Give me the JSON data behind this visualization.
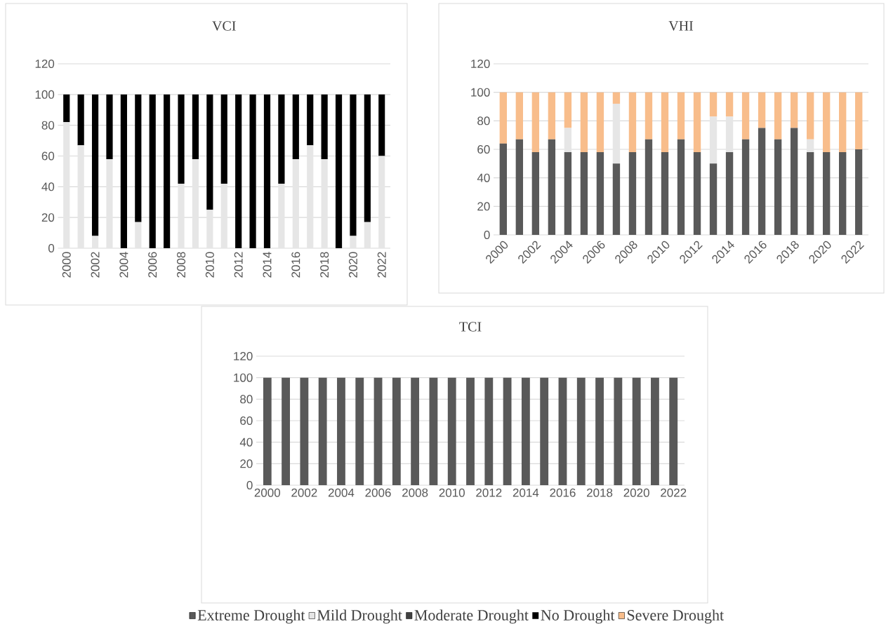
{
  "chart_data": [
    {
      "type": "bar",
      "title": "VCI",
      "stacked": true,
      "grid": "y",
      "ylim": [
        0,
        120
      ],
      "yticks": [
        0,
        20,
        40,
        60,
        80,
        100,
        120
      ],
      "categories": [
        "2000",
        null,
        "2002",
        null,
        "2004",
        null,
        "2006",
        null,
        "2008",
        null,
        "2010",
        null,
        "2012",
        null,
        "2014",
        null,
        "2016",
        null,
        "2018",
        null,
        "2020",
        null,
        "2022"
      ],
      "series": [
        {
          "color": "#e6e6e6",
          "values": [
            82,
            67,
            8,
            58,
            0,
            17,
            0,
            0,
            42,
            58,
            25,
            42,
            0,
            0,
            0,
            42,
            58,
            67,
            58,
            0,
            8,
            17,
            60
          ]
        },
        {
          "color": "#000000",
          "values": [
            18,
            33,
            92,
            42,
            100,
            83,
            100,
            100,
            58,
            42,
            75,
            58,
            100,
            100,
            100,
            58,
            42,
            33,
            42,
            100,
            92,
            83,
            40
          ]
        }
      ]
    },
    {
      "type": "bar",
      "title": "VHI",
      "stacked": true,
      "grid": "y",
      "ylim": [
        0,
        120
      ],
      "yticks": [
        0,
        20,
        40,
        60,
        80,
        100,
        120
      ],
      "categories": [
        "2000",
        null,
        "2002",
        null,
        "2004",
        null,
        "2006",
        null,
        "2008",
        null,
        "2010",
        null,
        "2012",
        null,
        "2014",
        null,
        "2016",
        null,
        "2018",
        null,
        "2020",
        null,
        "2022"
      ],
      "series": [
        {
          "color": "#595959",
          "values": [
            64,
            67,
            58,
            67,
            58,
            58,
            58,
            50,
            58,
            67,
            58,
            67,
            58,
            50,
            58,
            67,
            75,
            67,
            75,
            58,
            58,
            58,
            60
          ]
        },
        {
          "color": "#e6e6e6",
          "values": [
            0,
            0,
            0,
            0,
            17,
            0,
            0,
            42,
            0,
            0,
            0,
            0,
            0,
            33,
            25,
            0,
            0,
            0,
            0,
            9,
            0,
            0,
            0
          ]
        },
        {
          "color": "#f8bd8b",
          "values": [
            36,
            33,
            42,
            33,
            25,
            42,
            42,
            8,
            42,
            33,
            42,
            33,
            42,
            17,
            17,
            33,
            25,
            33,
            25,
            33,
            42,
            42,
            40
          ]
        }
      ]
    },
    {
      "type": "bar",
      "title": "TCI",
      "stacked": true,
      "grid": "y",
      "legend": "bottom",
      "ylim": [
        0,
        120
      ],
      "yticks": [
        0,
        20,
        40,
        60,
        80,
        100,
        120
      ],
      "categories": [
        "2000",
        null,
        "2002",
        null,
        "2004",
        null,
        "2006",
        null,
        "2008",
        null,
        "2010",
        null,
        "2012",
        null,
        "2014",
        null,
        "2016",
        null,
        "2018",
        null,
        "2020",
        null,
        "2022"
      ],
      "series": [
        {
          "name": "Extreme Drought",
          "color": "#595959",
          "values": [
            100,
            100,
            100,
            100,
            100,
            100,
            100,
            100,
            100,
            100,
            100,
            100,
            100,
            100,
            100,
            100,
            100,
            100,
            100,
            100,
            100,
            100,
            100
          ]
        },
        {
          "name": "Mild Drought",
          "color": "#e6e6e6",
          "values": [
            0,
            0,
            0,
            0,
            0,
            0,
            0,
            0,
            0,
            0,
            0,
            0,
            0,
            0,
            0,
            0,
            0,
            0,
            0,
            0,
            0,
            0,
            0
          ]
        },
        {
          "name": "Moderate Drought",
          "color": "#404040",
          "values": [
            0,
            0,
            0,
            0,
            0,
            0,
            0,
            0,
            0,
            0,
            0,
            0,
            0,
            0,
            0,
            0,
            0,
            0,
            0,
            0,
            0,
            0,
            0
          ]
        },
        {
          "name": "No Drought",
          "color": "#000000",
          "values": [
            0,
            0,
            0,
            0,
            0,
            0,
            0,
            0,
            0,
            0,
            0,
            0,
            0,
            0,
            0,
            0,
            0,
            0,
            0,
            0,
            0,
            0,
            0
          ]
        },
        {
          "name": "Severe Drought",
          "color": "#f8bd8b",
          "values": [
            0,
            0,
            0,
            0,
            0,
            0,
            0,
            0,
            0,
            0,
            0,
            0,
            0,
            0,
            0,
            0,
            0,
            0,
            0,
            0,
            0,
            0,
            0
          ]
        }
      ]
    }
  ]
}
